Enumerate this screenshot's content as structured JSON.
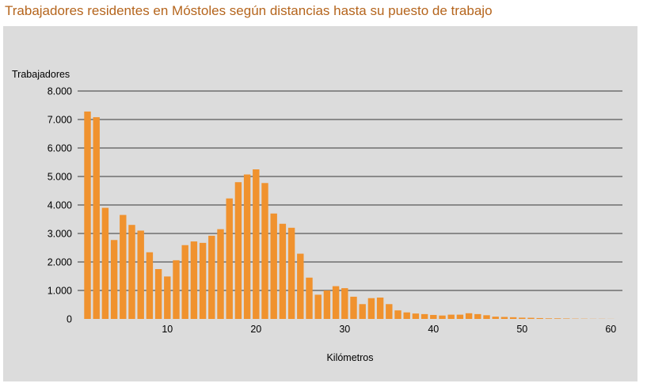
{
  "title": "Trabajadores residentes en Móstoles según distancias hasta su puesto de trabajo",
  "colors": {
    "bar": "#f0922e",
    "panel": "#dcdcdc",
    "title": "#b5651d",
    "grid": "#000000"
  },
  "chart_data": {
    "type": "bar",
    "title": "Trabajadores residentes en Móstoles según distancias hasta su puesto de trabajo",
    "xlabel": "Kilómetros",
    "ylabel": "Trabajadores",
    "ylim": [
      0,
      8000
    ],
    "xlim": [
      0,
      61
    ],
    "y_ticks": [
      {
        "value": 0,
        "label": "0"
      },
      {
        "value": 1000,
        "label": "1.000"
      },
      {
        "value": 2000,
        "label": "2.000"
      },
      {
        "value": 3000,
        "label": "3.000"
      },
      {
        "value": 4000,
        "label": "4.000"
      },
      {
        "value": 5000,
        "label": "5.000"
      },
      {
        "value": 6000,
        "label": "6.000"
      },
      {
        "value": 7000,
        "label": "7.000"
      },
      {
        "value": 8000,
        "label": "8.000"
      }
    ],
    "x_ticks": [
      {
        "value": 10,
        "label": "10"
      },
      {
        "value": 20,
        "label": "20"
      },
      {
        "value": 30,
        "label": "30"
      },
      {
        "value": 40,
        "label": "40"
      },
      {
        "value": 50,
        "label": "50"
      },
      {
        "value": 60,
        "label": "60"
      }
    ],
    "grid": true,
    "x": [
      1,
      2,
      3,
      4,
      5,
      6,
      7,
      8,
      9,
      10,
      11,
      12,
      13,
      14,
      15,
      16,
      17,
      18,
      19,
      20,
      21,
      22,
      23,
      24,
      25,
      26,
      27,
      28,
      29,
      30,
      31,
      32,
      33,
      34,
      35,
      36,
      37,
      38,
      39,
      40,
      41,
      42,
      43,
      44,
      45,
      46,
      47,
      48,
      49,
      50,
      51,
      52,
      53,
      54,
      55,
      56,
      57,
      58,
      59,
      60
    ],
    "values": [
      7280,
      7080,
      3900,
      2770,
      3650,
      3300,
      3100,
      2340,
      1750,
      1490,
      2060,
      2590,
      2720,
      2670,
      2920,
      3150,
      4230,
      4800,
      5070,
      5250,
      4770,
      3700,
      3340,
      3200,
      2290,
      1450,
      850,
      1000,
      1150,
      1080,
      780,
      520,
      730,
      750,
      520,
      300,
      230,
      190,
      170,
      140,
      120,
      150,
      150,
      200,
      170,
      130,
      80,
      70,
      60,
      45,
      40,
      30,
      20,
      20,
      15,
      10,
      8,
      5,
      5,
      3
    ]
  }
}
